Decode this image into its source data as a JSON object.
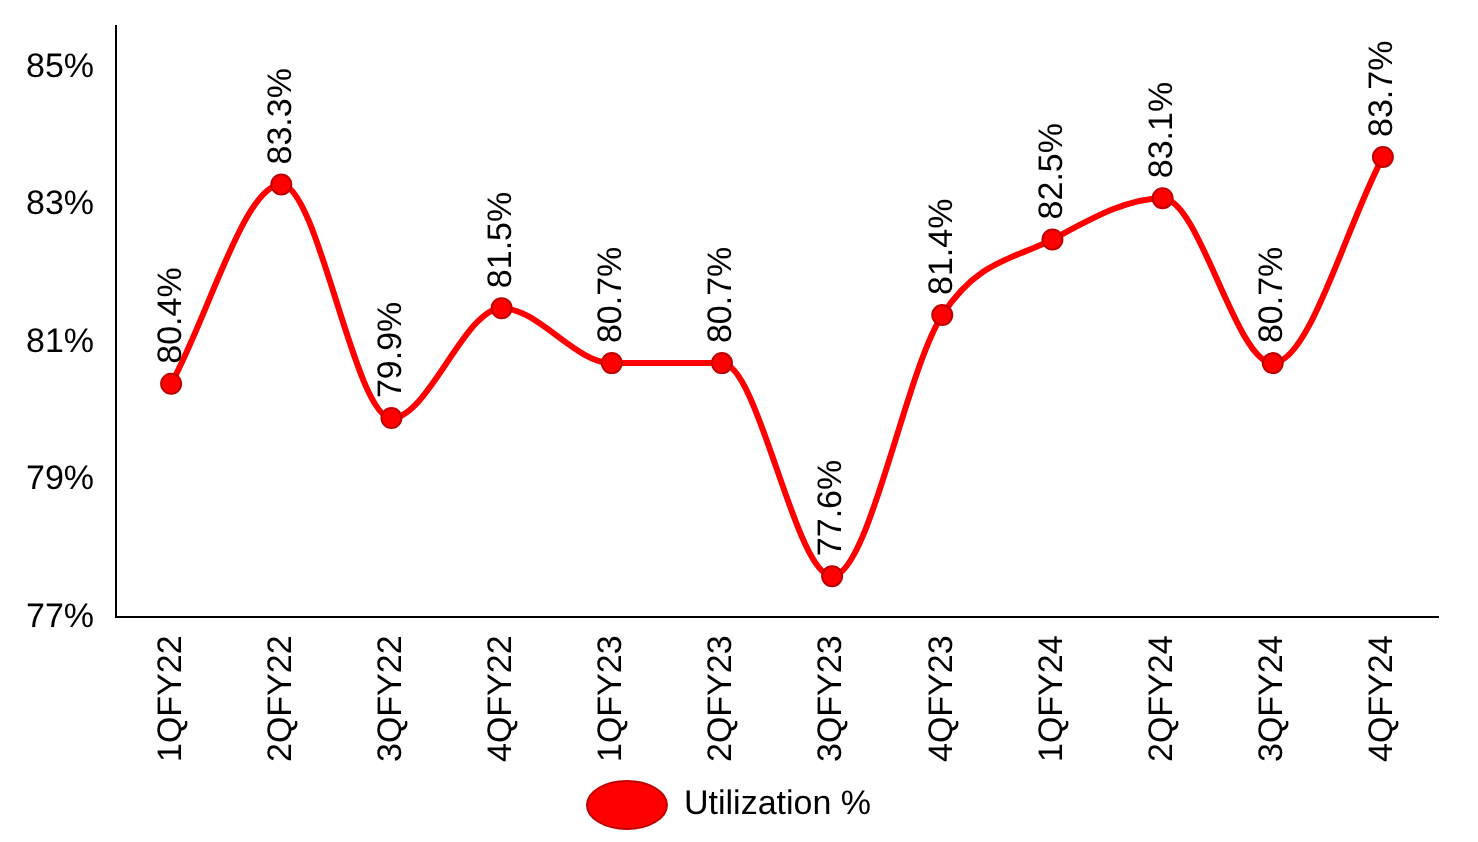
{
  "chart_data": {
    "type": "line",
    "categories": [
      "1QFY22",
      "2QFY22",
      "3QFY22",
      "4QFY22",
      "1QFY23",
      "2QFY23",
      "3QFY23",
      "4QFY23",
      "1QFY24",
      "2QFY24",
      "3QFY24",
      "4QFY24"
    ],
    "series": [
      {
        "name": "Utilization %",
        "color": "#ff0000",
        "values": [
          80.4,
          83.3,
          79.9,
          81.5,
          80.7,
          80.7,
          77.6,
          81.4,
          82.5,
          83.1,
          80.7,
          83.7
        ],
        "value_labels": [
          "80.4%",
          "83.3%",
          "79.9%",
          "81.5%",
          "80.7%",
          "80.7%",
          "77.6%",
          "81.4%",
          "82.5%",
          "83.1%",
          "80.7%",
          "83.7%"
        ]
      }
    ],
    "ylim": [
      77,
      85.6
    ],
    "yticks": [
      {
        "value": 77,
        "label": "77%"
      },
      {
        "value": 79,
        "label": "79%"
      },
      {
        "value": 81,
        "label": "81%"
      },
      {
        "value": 83,
        "label": "83%"
      },
      {
        "value": 85,
        "label": "85%"
      }
    ],
    "grid": false,
    "legend": "bottom",
    "marker": "circle",
    "line_style": "solid"
  }
}
